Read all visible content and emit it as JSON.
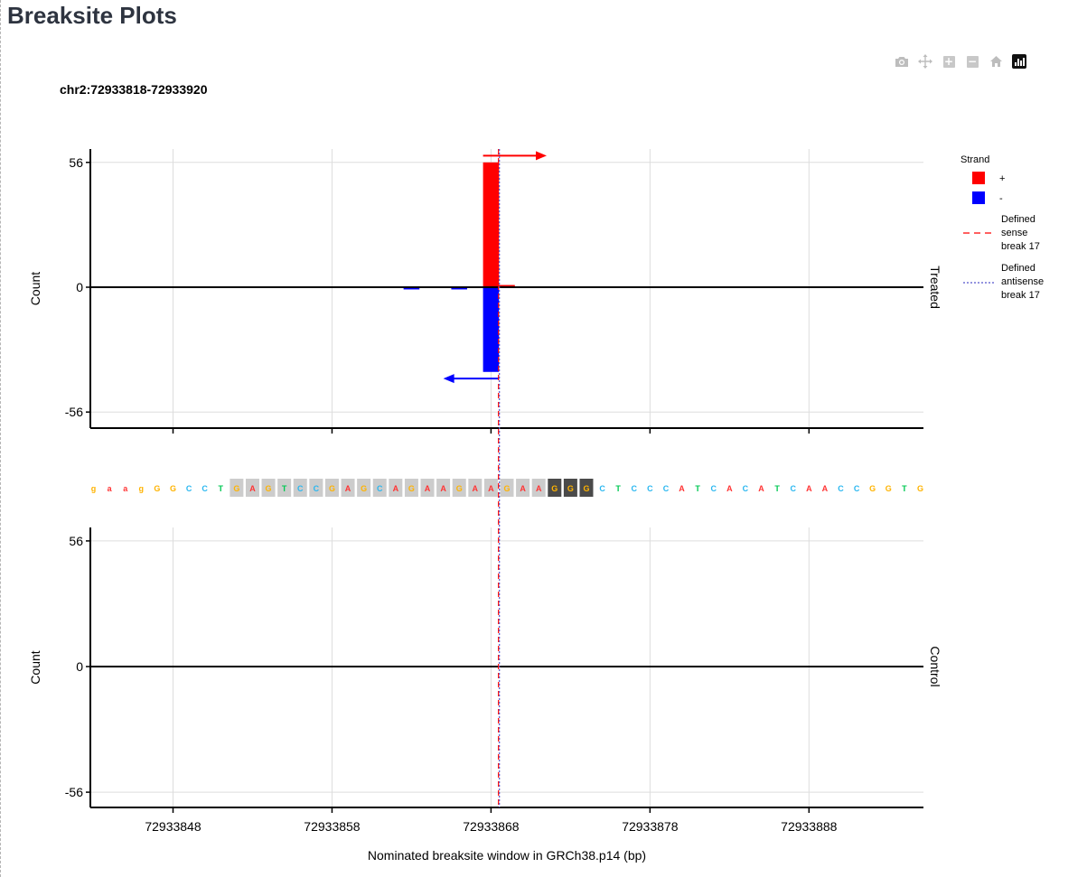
{
  "page": {
    "title": "Breaksite Plots"
  },
  "modebar": {
    "buttons": [
      {
        "name": "camera-icon",
        "glyph": "📷"
      },
      {
        "name": "pan-icon",
        "glyph": "✥"
      },
      {
        "name": "zoom-in-icon",
        "glyph": "+"
      },
      {
        "name": "zoom-out-icon",
        "glyph": "−"
      },
      {
        "name": "home-icon",
        "glyph": "⌂"
      },
      {
        "name": "plotly-logo-icon",
        "glyph": ""
      }
    ]
  },
  "chart_data": {
    "type": "bar",
    "title": "chr2:72933818-72933920",
    "xlabel": "Nominated breaksite window in GRCh38.p14 (bp)",
    "ylabel": "Count",
    "xlim": [
      72933842.8,
      72933895.2
    ],
    "ylim": [
      -62,
      62
    ],
    "x_ticks": [
      72933848,
      72933858,
      72933868,
      72933878,
      72933888
    ],
    "x_tick_labels": [
      "72933848",
      "72933858",
      "72933868",
      "72933878",
      "72933888"
    ],
    "y_ticks": [
      56,
      0,
      -56
    ],
    "y_tick_labels": [
      "56",
      "0",
      "-56"
    ],
    "grid": true,
    "legend_position": "right",
    "legend": {
      "title": "Strand",
      "items": [
        {
          "label": "+",
          "kind": "fill",
          "color": "#ff0000"
        },
        {
          "label": "-",
          "kind": "fill",
          "color": "#0000ff"
        },
        {
          "label": "Defined sense break 17",
          "lines": [
            "Defined",
            "sense",
            "break 17"
          ],
          "kind": "dashed",
          "color": "#ff0000"
        },
        {
          "label": "Defined antisense break 17",
          "lines": [
            "Defined",
            "antisense",
            "break 17"
          ],
          "kind": "dotted",
          "color": "#5555cc"
        }
      ]
    },
    "colors": {
      "plus": "#ff0000",
      "minus": "#0000ff",
      "axis": "#000000",
      "grid": "#dddddd"
    },
    "facets": [
      {
        "label": "Treated",
        "bars": [
          {
            "x": 72933868,
            "value": 56,
            "strand": "+"
          },
          {
            "x": 72933869,
            "value": 1,
            "strand": "+"
          },
          {
            "x": 72933868,
            "value": -38,
            "strand": "-"
          },
          {
            "x": 72933863,
            "value": -1,
            "strand": "-"
          },
          {
            "x": 72933866,
            "value": -1,
            "strand": "-"
          }
        ],
        "arrows": [
          {
            "strand": "+",
            "from": 72933867.5,
            "to": 72933871.5,
            "y": 59
          },
          {
            "strand": "-",
            "from": 72933868.5,
            "to": 72933865,
            "y": -41
          }
        ]
      },
      {
        "label": "Control",
        "bars": [],
        "arrows": []
      }
    ],
    "break_lines": [
      {
        "label": "Defined sense break 17",
        "x": 72933868.5,
        "style": "dashed",
        "color": "#ff0000"
      },
      {
        "label": "Defined antisense break 17",
        "x": 72933868.5,
        "style": "dotted",
        "color": "#5555cc"
      }
    ],
    "sequence": {
      "start": 72933843,
      "bases": [
        "g",
        "a",
        "a",
        "g",
        "G",
        "G",
        "C",
        "C",
        "T",
        "G",
        "A",
        "G",
        "T",
        "C",
        "C",
        "G",
        "A",
        "G",
        "C",
        "A",
        "G",
        "A",
        "A",
        "G",
        "A",
        "A",
        "G",
        "A",
        "A",
        "G",
        "G",
        "G",
        "C",
        "T",
        "C",
        "C",
        "C",
        "A",
        "T",
        "C",
        "A",
        "C",
        "A",
        "T",
        "C",
        "A",
        "A",
        "C",
        "C",
        "G",
        "G",
        "T",
        "G"
      ],
      "guide_range": [
        9,
        28
      ],
      "pam_range": [
        29,
        31
      ],
      "base_colors": {
        "A": "#ff3333",
        "C": "#2ab7f0",
        "G": "#ffb300",
        "T": "#00c853"
      },
      "guide_bg": "#cccccc",
      "pam_bg": "#4a4a4a"
    }
  }
}
